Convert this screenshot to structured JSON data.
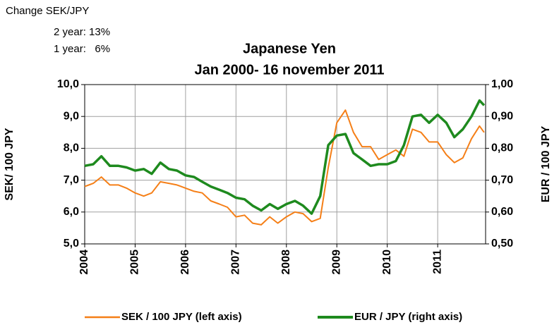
{
  "chart_data": {
    "type": "line",
    "title": "Japanese Yen",
    "subtitle": "Jan 2000-  16 november 2011",
    "annotations": [
      "Change SEK/JPY",
      "2 year: 13%",
      "1 year:   6%"
    ],
    "ylabel": "SEK/ 100 JPY",
    "y2label": "EUR / 100 JPY",
    "x": [
      2004,
      2004.17,
      2004.33,
      2004.5,
      2004.67,
      2004.83,
      2005,
      2005.17,
      2005.33,
      2005.5,
      2005.67,
      2005.83,
      2006,
      2006.17,
      2006.33,
      2006.5,
      2006.67,
      2006.83,
      2007,
      2007.17,
      2007.33,
      2007.5,
      2007.67,
      2007.83,
      2008,
      2008.17,
      2008.33,
      2008.5,
      2008.67,
      2008.83,
      2009,
      2009.17,
      2009.33,
      2009.5,
      2009.67,
      2009.83,
      2010,
      2010.17,
      2010.33,
      2010.5,
      2010.67,
      2010.83,
      2011,
      2011.17,
      2011.33,
      2011.5,
      2011.67,
      2011.83,
      2011.92
    ],
    "xlim": [
      2004,
      2011.95
    ],
    "xticks": [
      2004,
      2005,
      2006,
      2007,
      2008,
      2009,
      2010,
      2011
    ],
    "ylim": [
      5,
      10
    ],
    "yticks": [
      {
        "value": 5,
        "label": "5,0"
      },
      {
        "value": 6,
        "label": "6,0"
      },
      {
        "value": 7,
        "label": "7,0"
      },
      {
        "value": 8,
        "label": "8,0"
      },
      {
        "value": 9,
        "label": "9,0"
      },
      {
        "value": 10,
        "label": "10,0"
      }
    ],
    "y2lim": [
      0.5,
      1.0
    ],
    "y2ticks": [
      {
        "value": 0.5,
        "label": "0,50"
      },
      {
        "value": 0.6,
        "label": "0,60"
      },
      {
        "value": 0.7,
        "label": "0,70"
      },
      {
        "value": 0.8,
        "label": "0,80"
      },
      {
        "value": 0.9,
        "label": "0,90"
      },
      {
        "value": 1.0,
        "label": "1,00"
      }
    ],
    "grid": true,
    "legend": "bottom",
    "series": [
      {
        "name": "SEK / 100 JPY (left axis)",
        "color": "#f57f17",
        "axis": "y",
        "values": [
          6.8,
          6.9,
          7.1,
          6.85,
          6.85,
          6.75,
          6.6,
          6.5,
          6.6,
          6.95,
          6.9,
          6.85,
          6.75,
          6.65,
          6.6,
          6.35,
          6.25,
          6.15,
          5.85,
          5.9,
          5.65,
          5.6,
          5.85,
          5.65,
          5.85,
          6.0,
          5.95,
          5.7,
          5.8,
          7.4,
          8.8,
          9.2,
          8.5,
          8.05,
          8.05,
          7.65,
          7.8,
          7.95,
          7.75,
          8.6,
          8.5,
          8.2,
          8.2,
          7.8,
          7.55,
          7.7,
          8.3,
          8.7,
          8.5
        ]
      },
      {
        "name": "EUR / JPY (right axis)",
        "color": "#1e8a1e",
        "axis": "y2",
        "values": [
          0.745,
          0.75,
          0.775,
          0.745,
          0.745,
          0.74,
          0.73,
          0.735,
          0.72,
          0.755,
          0.735,
          0.73,
          0.715,
          0.71,
          0.695,
          0.68,
          0.67,
          0.66,
          0.645,
          0.64,
          0.62,
          0.605,
          0.625,
          0.61,
          0.625,
          0.635,
          0.62,
          0.595,
          0.65,
          0.81,
          0.84,
          0.845,
          0.785,
          0.765,
          0.745,
          0.75,
          0.75,
          0.76,
          0.81,
          0.9,
          0.905,
          0.88,
          0.905,
          0.88,
          0.835,
          0.86,
          0.9,
          0.95,
          0.935
        ]
      }
    ]
  }
}
